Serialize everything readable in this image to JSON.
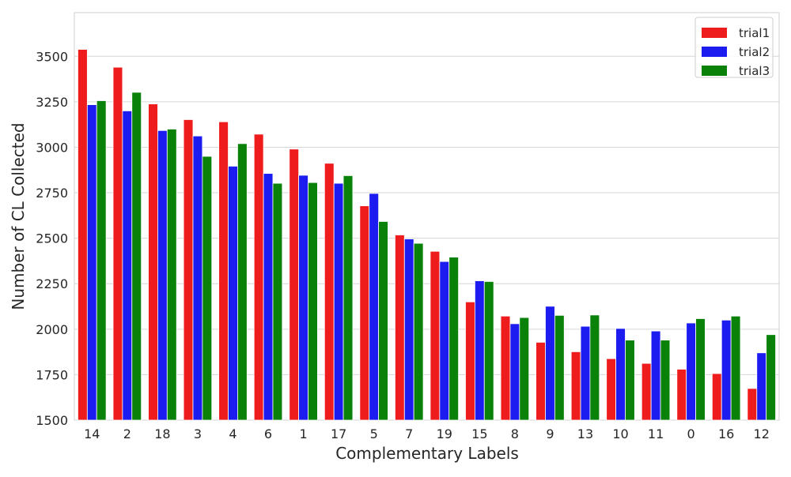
{
  "chart_data": {
    "type": "bar",
    "title": "",
    "xlabel": "Complementary Labels",
    "ylabel": "Number of CL Collected",
    "categories": [
      "14",
      "2",
      "18",
      "3",
      "4",
      "6",
      "1",
      "17",
      "5",
      "7",
      "19",
      "15",
      "8",
      "9",
      "13",
      "10",
      "11",
      "0",
      "16",
      "12"
    ],
    "series": [
      {
        "name": "trial1",
        "color": "#ee1c1c",
        "values": [
          3538,
          3440,
          3238,
          3152,
          3140,
          3072,
          2990,
          2912,
          2678,
          2518,
          2428,
          2150,
          2072,
          1928,
          1876,
          1838,
          1812,
          1780,
          1756,
          1674
        ]
      },
      {
        "name": "trial2",
        "color": "#1c1cf0",
        "values": [
          3234,
          3200,
          3092,
          3062,
          2896,
          2856,
          2846,
          2802,
          2746,
          2496,
          2372,
          2266,
          2030,
          2126,
          2016,
          2004,
          1990,
          2034,
          2050,
          1870
        ]
      },
      {
        "name": "trial3",
        "color": "#0a820a",
        "values": [
          3256,
          3302,
          3100,
          2950,
          3020,
          2802,
          2806,
          2844,
          2592,
          2472,
          2396,
          2262,
          2064,
          2076,
          2078,
          1940,
          1940,
          2058,
          2072,
          1970
        ]
      }
    ],
    "ylim": [
      1500,
      3740
    ],
    "yticks": [
      1500,
      1750,
      2000,
      2250,
      2500,
      2750,
      3000,
      3250,
      3500
    ],
    "grid": true,
    "legend_position": "top-right"
  }
}
